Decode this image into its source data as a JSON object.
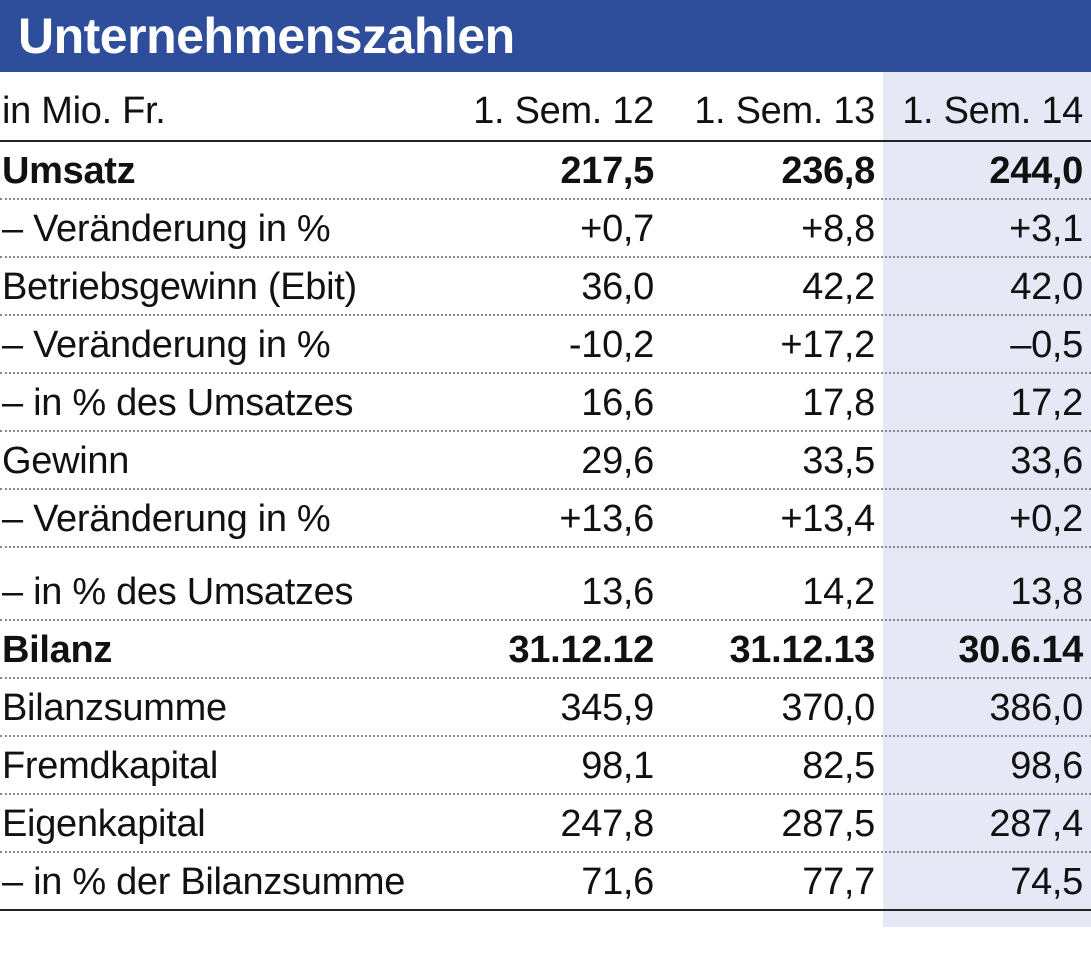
{
  "title": "Unternehmenszahlen",
  "colors": {
    "title_bar": "#2e4e9c",
    "title_text": "#ffffff",
    "highlight_column": "#e6e9f5"
  },
  "chart_data": {
    "type": "table",
    "title": "Unternehmenszahlen",
    "header": [
      "in Mio. Fr.",
      "1. Sem. 12",
      "1. Sem. 13",
      "1. Sem. 14"
    ],
    "highlighted_column": "1. Sem. 14",
    "rows": [
      {
        "label": "Umsatz",
        "values": [
          "217,5",
          "236,8",
          "244,0"
        ],
        "bold": true
      },
      {
        "label": "– Veränderung in %",
        "values": [
          "+0,7",
          "+8,8",
          "+3,1"
        ],
        "bold": false
      },
      {
        "label": "Betriebsgewinn (Ebit)",
        "values": [
          "36,0",
          "42,2",
          "42,0"
        ],
        "bold": false
      },
      {
        "label": "– Veränderung in %",
        "values": [
          "-10,2",
          "+17,2",
          "–0,5"
        ],
        "bold": false
      },
      {
        "label": "– in % des Umsatzes",
        "values": [
          "16,6",
          "17,8",
          "17,2"
        ],
        "bold": false
      },
      {
        "label": "Gewinn",
        "values": [
          "29,6",
          "33,5",
          "33,6"
        ],
        "bold": false
      },
      {
        "label": "– Veränderung in %",
        "values": [
          "+13,6",
          "+13,4",
          "+0,2"
        ],
        "bold": false
      },
      {
        "label": "– in % des Umsatzes",
        "values": [
          "13,6",
          "14,2",
          "13,8"
        ],
        "bold": false
      },
      {
        "label": "Bilanz",
        "values": [
          "31.12.12",
          "31.12.13",
          "30.6.14"
        ],
        "bold": true
      },
      {
        "label": "Bilanzsumme",
        "values": [
          "345,9",
          "370,0",
          "386,0"
        ],
        "bold": false
      },
      {
        "label": "Fremdkapital",
        "values": [
          "98,1",
          "82,5",
          "98,6"
        ],
        "bold": false
      },
      {
        "label": "Eigenkapital",
        "values": [
          "247,8",
          "287,5",
          "287,4"
        ],
        "bold": false
      },
      {
        "label": "– in % der Bilanzsumme",
        "values": [
          "71,6",
          "77,7",
          "74,5"
        ],
        "bold": false
      }
    ]
  }
}
